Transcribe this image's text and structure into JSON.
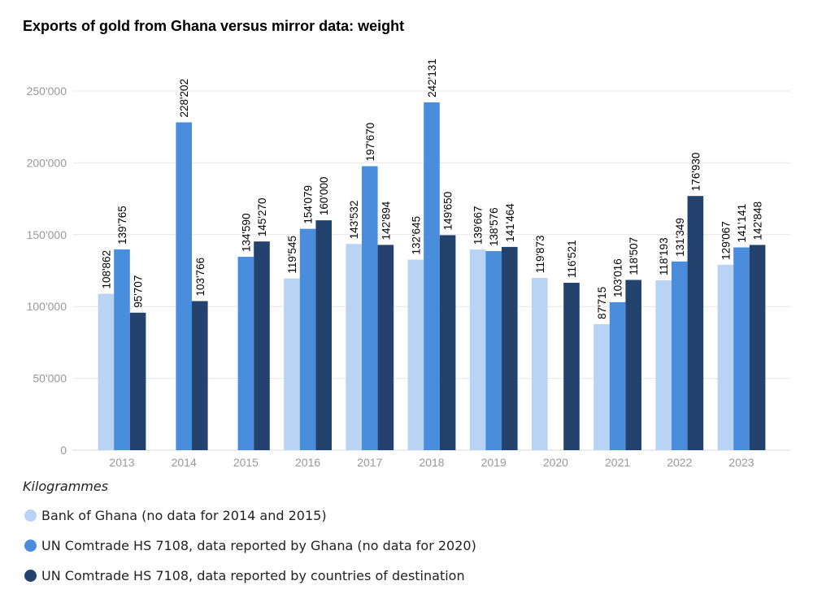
{
  "chart_data": {
    "type": "bar",
    "title": "Exports of gold from Ghana versus mirror data: weight",
    "ylabel": "Kilogrammes",
    "xlabel": "",
    "ylim": [
      0,
      250000
    ],
    "yticks": [
      0,
      50000,
      100000,
      150000,
      200000,
      250000
    ],
    "ytick_labels": [
      "0",
      "50'000",
      "100'000",
      "150'000",
      "200'000",
      "250'000"
    ],
    "grid": true,
    "legend_position": "bottom-left",
    "categories": [
      "2013",
      "2014",
      "2015",
      "2016",
      "2017",
      "2018",
      "2019",
      "2020",
      "2021",
      "2022",
      "2023"
    ],
    "series": [
      {
        "name": "Bank of Ghana (no data for 2014 and 2015)",
        "color": "#b8d3f3",
        "values": [
          108862,
          null,
          null,
          119545,
          143532,
          132645,
          139667,
          119873,
          87715,
          118193,
          129067
        ],
        "labels": [
          "108'862",
          "",
          "",
          "119'545",
          "143'532",
          "132'645",
          "139'667",
          "119'873",
          "87'715",
          "118'193",
          "129'067"
        ]
      },
      {
        "name": "UN Comtrade HS 7108, data reported by Ghana (no data for 2020)",
        "color": "#4a8ddc",
        "values": [
          139765,
          228202,
          134590,
          154079,
          197670,
          242131,
          138576,
          null,
          103016,
          131349,
          141141
        ],
        "labels": [
          "139'765",
          "228'202",
          "134'590",
          "154'079",
          "197'670",
          "242'131",
          "138'576",
          "",
          "103'016",
          "131'349",
          "141'141"
        ]
      },
      {
        "name": "UN Comtrade HS 7108, data reported by countries of destination",
        "color": "#23436e",
        "values": [
          95707,
          103766,
          145270,
          160000,
          142894,
          149650,
          141464,
          116521,
          118507,
          176930,
          142848
        ],
        "labels": [
          "95'707",
          "103'766",
          "145'270",
          "160'000",
          "142'894",
          "149'650",
          "141'464",
          "116'521",
          "118'507",
          "176'930",
          "142'848"
        ]
      }
    ]
  }
}
